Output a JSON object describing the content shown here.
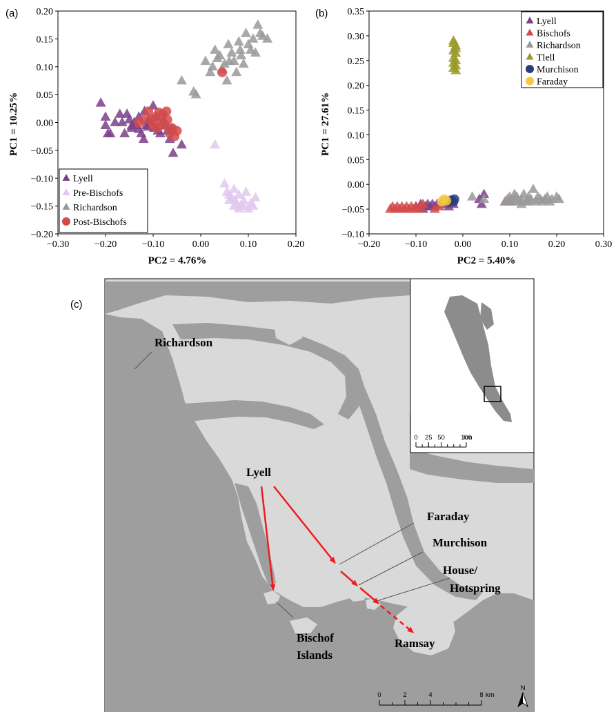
{
  "chart_data": [
    {
      "panel": "(a)",
      "type": "scatter",
      "xlabel": "PC2 = 4.76%",
      "ylabel": "PC1 = 10.25%",
      "xlim": [
        -0.3,
        0.2
      ],
      "ylim": [
        -0.2,
        0.2
      ],
      "xticks": [
        "−0.30",
        "−0.20",
        "−0.10",
        "0.00",
        "0.10",
        "0.20"
      ],
      "yticks": [
        "0.20",
        "0.15",
        "0.10",
        "0.05",
        "0.00",
        "−0.05",
        "−0.10",
        "−0.15",
        "−0.20"
      ],
      "legend_position": "bottom-left",
      "series": [
        {
          "name": "Lyell",
          "marker": "triangle",
          "color": "#7b3f8a",
          "points": [
            [
              -0.21,
              0.035
            ],
            [
              -0.2,
              0.01
            ],
            [
              -0.2,
              -0.005
            ],
            [
              -0.195,
              -0.02
            ],
            [
              -0.19,
              -0.02
            ],
            [
              -0.18,
              0.0
            ],
            [
              -0.17,
              0.015
            ],
            [
              -0.165,
              0.0
            ],
            [
              -0.16,
              -0.02
            ],
            [
              -0.155,
              0.015
            ],
            [
              -0.15,
              0.005
            ],
            [
              -0.145,
              -0.01
            ],
            [
              -0.14,
              0.0
            ],
            [
              -0.135,
              -0.005
            ],
            [
              -0.13,
              0.01
            ],
            [
              -0.125,
              -0.02
            ],
            [
              -0.12,
              -0.03
            ],
            [
              -0.118,
              0.02
            ],
            [
              -0.115,
              -0.005
            ],
            [
              -0.11,
              0.005
            ],
            [
              -0.105,
              0.0
            ],
            [
              -0.1,
              0.03
            ],
            [
              -0.098,
              -0.01
            ],
            [
              -0.095,
              0.01
            ],
            [
              -0.09,
              -0.015
            ],
            [
              -0.085,
              -0.02
            ],
            [
              -0.078,
              0.005
            ],
            [
              -0.075,
              -0.005
            ],
            [
              -0.07,
              -0.015
            ],
            [
              -0.065,
              -0.03
            ],
            [
              -0.06,
              -0.01
            ],
            [
              -0.058,
              -0.055
            ],
            [
              -0.04,
              -0.04
            ],
            [
              -0.13,
              -0.012
            ],
            [
              -0.145,
              -0.006
            ],
            [
              -0.112,
              -0.008
            ]
          ]
        },
        {
          "name": "Pre-Bischofs",
          "marker": "triangle",
          "color": "#e0c8f0",
          "points": [
            [
              0.03,
              -0.04
            ],
            [
              0.05,
              -0.11
            ],
            [
              0.055,
              -0.125
            ],
            [
              0.06,
              -0.13
            ],
            [
              0.065,
              -0.135
            ],
            [
              0.07,
              -0.12
            ],
            [
              0.072,
              -0.14
            ],
            [
              0.075,
              -0.145
            ],
            [
              0.08,
              -0.13
            ],
            [
              0.085,
              -0.15
            ],
            [
              0.09,
              -0.14
            ],
            [
              0.095,
              -0.125
            ],
            [
              0.1,
              -0.155
            ],
            [
              0.105,
              -0.145
            ],
            [
              0.11,
              -0.15
            ],
            [
              0.115,
              -0.135
            ],
            [
              0.07,
              -0.15
            ],
            [
              0.08,
              -0.155
            ],
            [
              0.06,
              -0.14
            ],
            [
              0.09,
              -0.15
            ]
          ]
        },
        {
          "name": "Richardson",
          "marker": "triangle",
          "color": "#999999",
          "points": [
            [
              -0.04,
              0.075
            ],
            [
              -0.015,
              0.055
            ],
            [
              -0.01,
              0.05
            ],
            [
              0.01,
              0.11
            ],
            [
              0.02,
              0.09
            ],
            [
              0.025,
              0.1
            ],
            [
              0.03,
              0.13
            ],
            [
              0.035,
              0.115
            ],
            [
              0.04,
              0.12
            ],
            [
              0.045,
              0.095
            ],
            [
              0.05,
              0.105
            ],
            [
              0.055,
              0.075
            ],
            [
              0.058,
              0.14
            ],
            [
              0.06,
              0.11
            ],
            [
              0.065,
              0.125
            ],
            [
              0.07,
              0.11
            ],
            [
              0.075,
              0.09
            ],
            [
              0.08,
              0.145
            ],
            [
              0.083,
              0.13
            ],
            [
              0.085,
              0.12
            ],
            [
              0.09,
              0.105
            ],
            [
              0.095,
              0.16
            ],
            [
              0.1,
              0.14
            ],
            [
              0.105,
              0.13
            ],
            [
              0.11,
              0.15
            ],
            [
              0.115,
              0.125
            ],
            [
              0.12,
              0.175
            ],
            [
              0.125,
              0.16
            ],
            [
              0.13,
              0.155
            ],
            [
              0.14,
              0.15
            ]
          ]
        },
        {
          "name": "Post-Bischofs",
          "marker": "circle",
          "color": "#d24a4a",
          "points": [
            [
              -0.13,
              0.0
            ],
            [
              -0.12,
              0.005
            ],
            [
              -0.11,
              0.02
            ],
            [
              -0.105,
              0.005
            ],
            [
              -0.1,
              -0.005
            ],
            [
              -0.095,
              0.01
            ],
            [
              -0.09,
              -0.01
            ],
            [
              -0.085,
              0.0
            ],
            [
              -0.08,
              0.015
            ],
            [
              -0.075,
              -0.005
            ],
            [
              -0.07,
              0.005
            ],
            [
              -0.065,
              -0.02
            ],
            [
              -0.06,
              -0.01
            ],
            [
              -0.055,
              -0.025
            ],
            [
              -0.05,
              -0.015
            ],
            [
              -0.072,
              0.02
            ],
            [
              -0.088,
              0.018
            ],
            [
              0.045,
              0.09
            ]
          ]
        }
      ]
    },
    {
      "panel": "(b)",
      "type": "scatter",
      "xlabel": "PC2 = 5.40%",
      "ylabel": "PC1 = 27.61%",
      "xlim": [
        -0.2,
        0.3
      ],
      "ylim": [
        -0.1,
        0.35
      ],
      "xticks": [
        "−0.20",
        "−0.10",
        "0.00",
        "0.10",
        "0.20",
        "0.30"
      ],
      "yticks": [
        "0.35",
        "0.30",
        "0.25",
        "0.20",
        "0.15",
        "0.10",
        "0.05",
        "0.00",
        "−0.05",
        "−0.10"
      ],
      "legend_position": "top-right",
      "series": [
        {
          "name": "Lyell",
          "marker": "triangle",
          "color": "#7b3f8a",
          "points": [
            [
              -0.1,
              -0.045
            ],
            [
              -0.09,
              -0.04
            ],
            [
              -0.085,
              -0.05
            ],
            [
              -0.08,
              -0.045
            ],
            [
              -0.075,
              -0.04
            ],
            [
              -0.07,
              -0.045
            ],
            [
              -0.065,
              -0.04
            ],
            [
              -0.06,
              -0.045
            ],
            [
              -0.055,
              -0.04
            ],
            [
              -0.045,
              -0.035
            ],
            [
              -0.035,
              -0.04
            ],
            [
              -0.03,
              -0.045
            ],
            [
              -0.02,
              -0.04
            ],
            [
              0.035,
              -0.03
            ],
            [
              0.045,
              -0.02
            ],
            [
              0.04,
              -0.04
            ],
            [
              0.1,
              -0.035
            ]
          ]
        },
        {
          "name": "Bischofs",
          "marker": "triangle",
          "color": "#d24a4a",
          "points": [
            [
              -0.155,
              -0.05
            ],
            [
              -0.15,
              -0.045
            ],
            [
              -0.145,
              -0.05
            ],
            [
              -0.14,
              -0.045
            ],
            [
              -0.135,
              -0.05
            ],
            [
              -0.13,
              -0.045
            ],
            [
              -0.125,
              -0.05
            ],
            [
              -0.12,
              -0.045
            ],
            [
              -0.115,
              -0.05
            ],
            [
              -0.11,
              -0.045
            ],
            [
              -0.105,
              -0.05
            ],
            [
              -0.1,
              -0.045
            ],
            [
              -0.095,
              -0.05
            ],
            [
              -0.09,
              -0.045
            ],
            [
              -0.085,
              -0.04
            ],
            [
              -0.06,
              -0.05
            ],
            [
              -0.05,
              -0.045
            ],
            [
              0.09,
              -0.035
            ]
          ]
        },
        {
          "name": "Richardson",
          "marker": "triangle",
          "color": "#999999",
          "points": [
            [
              0.02,
              -0.025
            ],
            [
              0.045,
              -0.03
            ],
            [
              0.09,
              -0.035
            ],
            [
              0.095,
              -0.03
            ],
            [
              0.1,
              -0.025
            ],
            [
              0.105,
              -0.035
            ],
            [
              0.11,
              -0.03
            ],
            [
              0.115,
              -0.025
            ],
            [
              0.12,
              -0.035
            ],
            [
              0.125,
              -0.03
            ],
            [
              0.13,
              -0.02
            ],
            [
              0.135,
              -0.035
            ],
            [
              0.14,
              -0.025
            ],
            [
              0.145,
              -0.03
            ],
            [
              0.15,
              -0.01
            ],
            [
              0.155,
              -0.035
            ],
            [
              0.16,
              -0.025
            ],
            [
              0.165,
              -0.03
            ],
            [
              0.17,
              -0.035
            ],
            [
              0.175,
              -0.03
            ],
            [
              0.18,
              -0.025
            ],
            [
              0.185,
              -0.035
            ],
            [
              0.19,
              -0.03
            ],
            [
              0.2,
              -0.025
            ],
            [
              0.205,
              -0.03
            ],
            [
              0.11,
              -0.02
            ],
            [
              0.14,
              -0.035
            ],
            [
              0.125,
              -0.04
            ]
          ]
        },
        {
          "name": "Tlell",
          "marker": "triangle",
          "color": "#9a9a2a",
          "points": [
            [
              -0.02,
              0.29
            ],
            [
              -0.015,
              0.28
            ],
            [
              -0.02,
              0.27
            ],
            [
              -0.015,
              0.265
            ],
            [
              -0.02,
              0.255
            ],
            [
              -0.015,
              0.25
            ],
            [
              -0.02,
              0.245
            ],
            [
              -0.015,
              0.24
            ],
            [
              -0.02,
              0.235
            ],
            [
              -0.015,
              0.275
            ],
            [
              -0.02,
              0.285
            ],
            [
              -0.015,
              0.23
            ]
          ]
        },
        {
          "name": "Murchison",
          "marker": "circle",
          "color": "#2c3e7a",
          "points": [
            [
              -0.03,
              -0.035
            ],
            [
              -0.025,
              -0.032
            ],
            [
              -0.02,
              -0.035
            ],
            [
              -0.018,
              -0.03
            ]
          ]
        },
        {
          "name": "Faraday",
          "marker": "circle",
          "color": "#f5c842",
          "points": [
            [
              -0.045,
              -0.035
            ],
            [
              -0.04,
              -0.03
            ],
            [
              -0.035,
              -0.033
            ]
          ]
        }
      ]
    }
  ],
  "map": {
    "panel": "(c)",
    "labels": {
      "richardson": "Richardson",
      "lyell": "Lyell",
      "faraday": "Faraday",
      "murchison": "Murchison",
      "house": "House/",
      "hotspring": "Hotspring",
      "bischof1": "Bischof",
      "bischof2": "Islands",
      "ramsay": "Ramsay"
    },
    "scale": {
      "ticks": [
        "0",
        "2",
        "4",
        "8"
      ],
      "unit": "km"
    },
    "north": "N",
    "inset_scale": {
      "ticks": [
        "0",
        "25",
        "50",
        "100"
      ],
      "unit": "km"
    },
    "colors": {
      "land": "#d9d9d9",
      "water": "#9e9e9e",
      "arrow": "#ee1c1c"
    }
  }
}
